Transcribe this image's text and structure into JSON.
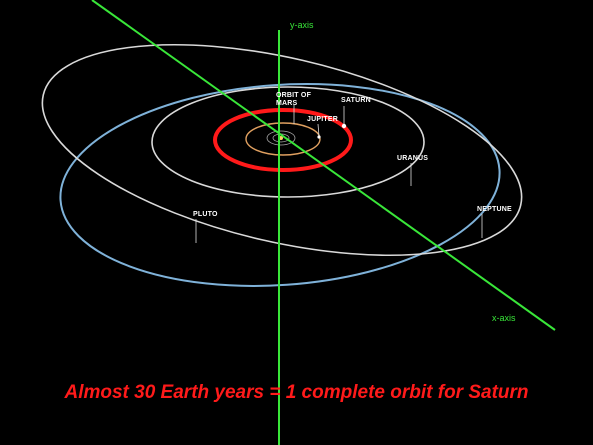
{
  "diagram": {
    "axes": {
      "y_label": "y-axis",
      "x_label": "x-axis"
    },
    "labels": {
      "mars_line1": "ORBIT OF",
      "mars_line2": "MARS",
      "jupiter": "JUPITER",
      "saturn": "SATURN",
      "uranus": "URANUS",
      "neptune": "NEPTUNE",
      "pluto": "PLUTO"
    },
    "colors": {
      "background": "#000000",
      "axes": "#39e639",
      "saturn_orbit": "#ff1a1a",
      "jupiter_orbit": "#e0a060",
      "neptune_orbit": "#7fb2d9",
      "uranus_orbit": "#d9d9d9",
      "pluto_orbit": "#d9d9d9",
      "caption": "#ff1a1a"
    }
  },
  "caption": "Almost 30 Earth years = 1 complete orbit for Saturn"
}
